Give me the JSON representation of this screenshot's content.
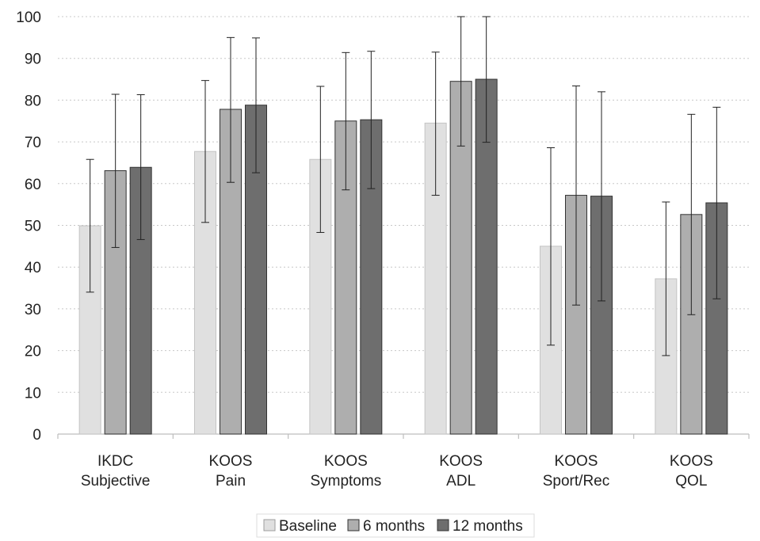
{
  "chart_data": {
    "type": "bar",
    "categories": [
      [
        "IKDC",
        "Subjective"
      ],
      [
        "KOOS",
        "Pain"
      ],
      [
        "KOOS",
        "Symptoms"
      ],
      [
        "KOOS",
        "ADL"
      ],
      [
        "KOOS",
        "Sport/Rec"
      ],
      [
        "KOOS",
        "QOL"
      ]
    ],
    "series": [
      {
        "name": "Baseline",
        "color": "#e0e0e0",
        "values": [
          49.9,
          67.7,
          65.8,
          74.5,
          45.0,
          37.2
        ],
        "err_low": [
          34.0,
          50.7,
          48.3,
          57.2,
          21.3,
          18.8
        ],
        "err_high": [
          65.8,
          84.7,
          83.3,
          91.5,
          68.6,
          55.6
        ]
      },
      {
        "name": "6 months",
        "color": "#aeaeae",
        "values": [
          63.1,
          77.8,
          75.0,
          84.5,
          57.2,
          52.6
        ],
        "err_low": [
          44.7,
          60.3,
          58.5,
          69.0,
          30.9,
          28.6
        ],
        "err_high": [
          81.4,
          95.0,
          91.4,
          100,
          83.4,
          76.6
        ]
      },
      {
        "name": "12 months",
        "color": "#6e6e6e",
        "values": [
          63.9,
          78.8,
          75.3,
          85.0,
          57.0,
          55.4
        ],
        "err_low": [
          46.6,
          62.6,
          58.8,
          69.9,
          31.9,
          32.4
        ],
        "err_high": [
          81.3,
          94.9,
          91.7,
          100,
          82.0,
          78.3
        ]
      }
    ],
    "yticks": [
      "0",
      "10",
      "20",
      "30",
      "40",
      "50",
      "60",
      "70",
      "80",
      "90",
      "100"
    ],
    "ylim": [
      0,
      100
    ],
    "grid": true,
    "legend_position": "bottom"
  }
}
